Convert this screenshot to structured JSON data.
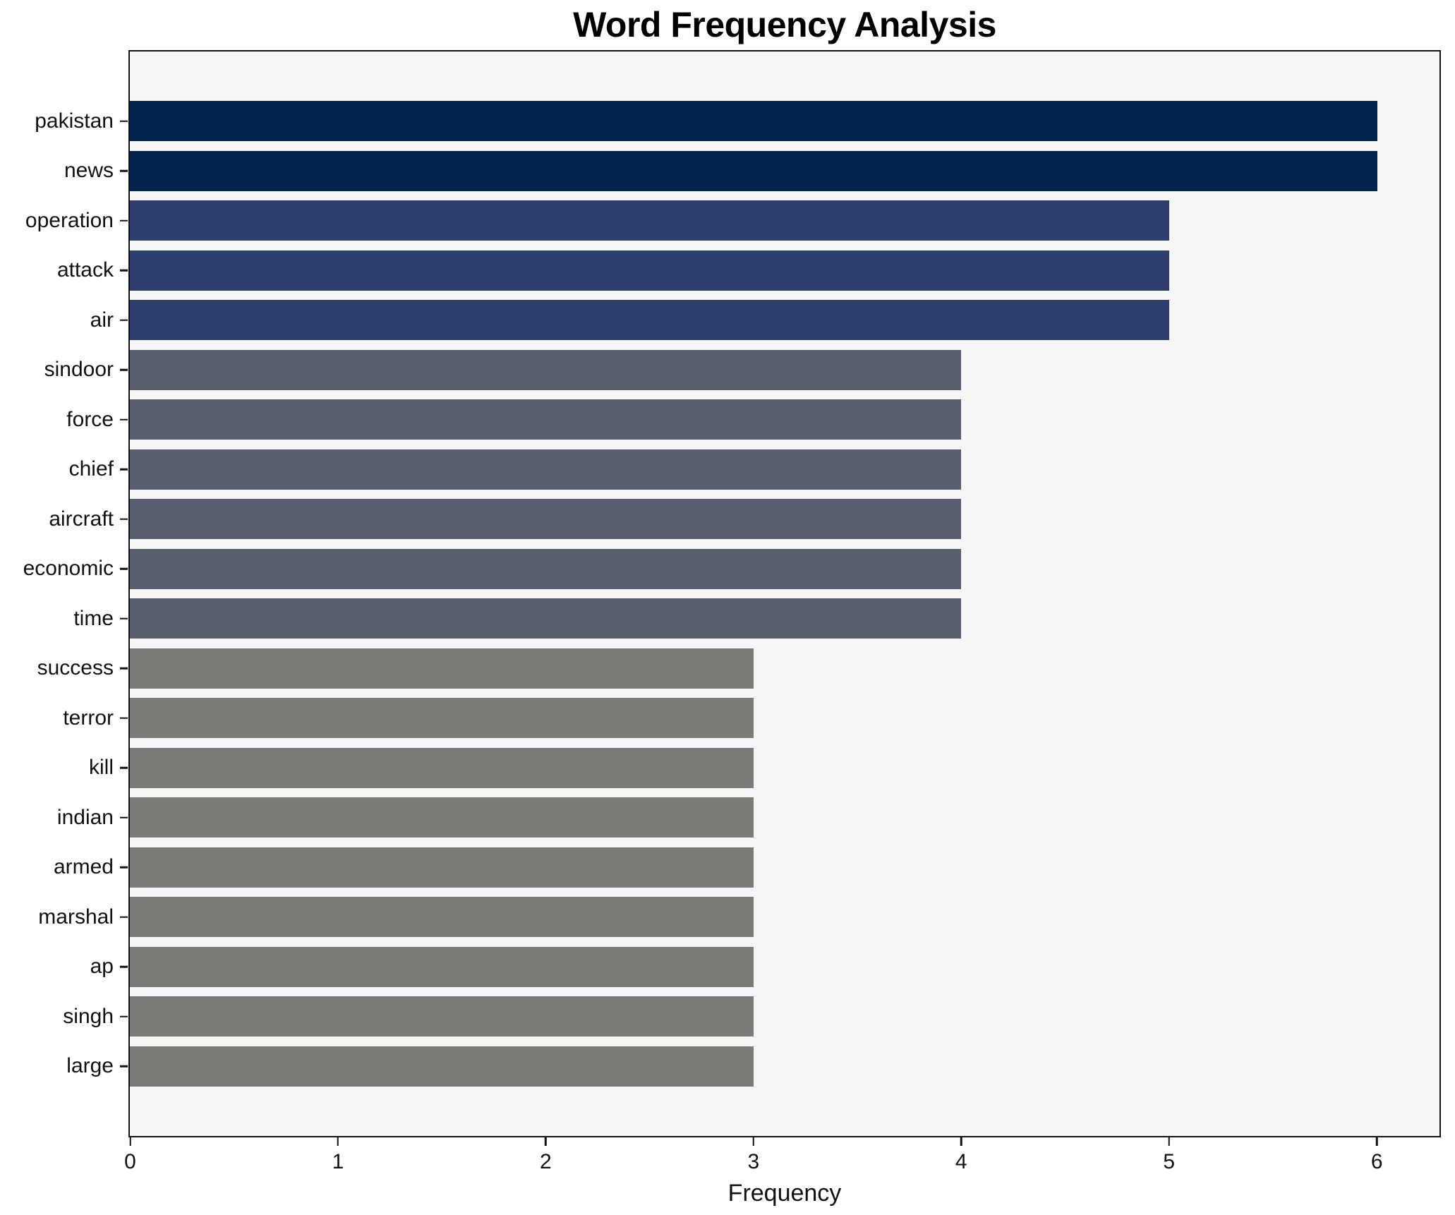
{
  "figure": {
    "background": "#ffffff",
    "plot_background": "#f6f6f6",
    "spine_color": "#111111",
    "text_color": "#111111"
  },
  "chart_data": {
    "type": "bar",
    "orientation": "horizontal",
    "title": "Word Frequency Analysis",
    "xlabel": "Frequency",
    "ylabel": "",
    "xlim": [
      0,
      6.3
    ],
    "xticks": [
      0,
      1,
      2,
      3,
      4,
      5,
      6
    ],
    "grid": false,
    "legend": null,
    "categories": [
      "pakistan",
      "news",
      "operation",
      "attack",
      "air",
      "sindoor",
      "force",
      "chief",
      "aircraft",
      "economic",
      "time",
      "success",
      "terror",
      "kill",
      "indian",
      "armed",
      "marshal",
      "ap",
      "singh",
      "large"
    ],
    "values": [
      6,
      6,
      5,
      5,
      5,
      4,
      4,
      4,
      4,
      4,
      4,
      3,
      3,
      3,
      3,
      3,
      3,
      3,
      3,
      3
    ],
    "value_colors": {
      "6": "#02234c",
      "5": "#2d3f6c",
      "4": "#565d6e",
      "3": "#7b7a77"
    }
  }
}
